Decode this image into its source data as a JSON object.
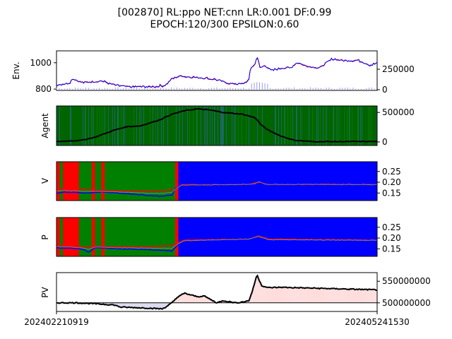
{
  "title_line1": "[002870] RL:ppo NET:cnn LR:0.001 DF:0.99",
  "title_line2": "EPOCH:120/300 EPSILON:0.60",
  "x_start_label": "202402210919",
  "x_end_label": "202405241530",
  "colors": {
    "red": "#ff0000",
    "blue": "#0000ff",
    "green": "#008000",
    "dark_green": "#006400",
    "black": "#000000",
    "gray": "#808080",
    "pink_fill": "#ffdddd",
    "lavender_fill": "#dcdcf0"
  },
  "chart_data": [
    {
      "type": "line",
      "panel": "env",
      "ylabel": "Env.",
      "yticks_left": [
        800,
        1000
      ],
      "yticks_right": [
        "0",
        "250000"
      ],
      "ylim": [
        790,
        1090
      ],
      "price_keypoints": [
        [
          0,
          832
        ],
        [
          0.04,
          845
        ],
        [
          0.05,
          880
        ],
        [
          0.08,
          850
        ],
        [
          0.14,
          862
        ],
        [
          0.18,
          830
        ],
        [
          0.22,
          818
        ],
        [
          0.3,
          818
        ],
        [
          0.34,
          830
        ],
        [
          0.36,
          880
        ],
        [
          0.39,
          900
        ],
        [
          0.42,
          890
        ],
        [
          0.46,
          885
        ],
        [
          0.5,
          870
        ],
        [
          0.54,
          840
        ],
        [
          0.58,
          840
        ],
        [
          0.6,
          870
        ],
        [
          0.605,
          960
        ],
        [
          0.62,
          990
        ],
        [
          0.625,
          1060
        ],
        [
          0.635,
          960
        ],
        [
          0.65,
          980
        ],
        [
          0.67,
          940
        ],
        [
          0.7,
          960
        ],
        [
          0.73,
          960
        ],
        [
          0.75,
          1000
        ],
        [
          0.78,
          975
        ],
        [
          0.82,
          960
        ],
        [
          0.86,
          1030
        ],
        [
          0.9,
          1015
        ],
        [
          0.94,
          1020
        ],
        [
          0.98,
          980
        ],
        [
          1.0,
          1000
        ]
      ]
    },
    {
      "type": "line",
      "panel": "agent",
      "ylabel": "Agent",
      "yticks_right": [
        "0",
        "500000"
      ],
      "ylim": [
        -60000,
        610000
      ],
      "holdings_keypoints": [
        [
          0,
          5000
        ],
        [
          0.08,
          30000
        ],
        [
          0.12,
          80000
        ],
        [
          0.18,
          200000
        ],
        [
          0.22,
          260000
        ],
        [
          0.26,
          270000
        ],
        [
          0.32,
          370000
        ],
        [
          0.36,
          470000
        ],
        [
          0.4,
          530000
        ],
        [
          0.44,
          560000
        ],
        [
          0.48,
          540000
        ],
        [
          0.52,
          500000
        ],
        [
          0.58,
          470000
        ],
        [
          0.62,
          410000
        ],
        [
          0.64,
          280000
        ],
        [
          0.66,
          200000
        ],
        [
          0.7,
          100000
        ],
        [
          0.74,
          30000
        ],
        [
          0.8,
          5000
        ],
        [
          1.0,
          8000
        ]
      ]
    },
    {
      "type": "area",
      "panel": "value",
      "ylabel": "V",
      "yticks": [
        "0.15",
        "0.20",
        "0.25"
      ],
      "ylim": [
        0.115,
        0.295
      ],
      "bands": [
        [
          0,
          0.01,
          "red"
        ],
        [
          0.01,
          0.02,
          "green"
        ],
        [
          0.02,
          0.07,
          "red"
        ],
        [
          0.07,
          0.11,
          "green"
        ],
        [
          0.11,
          0.12,
          "red"
        ],
        [
          0.12,
          0.14,
          "green"
        ],
        [
          0.14,
          0.15,
          "red"
        ],
        [
          0.15,
          0.37,
          "green"
        ],
        [
          0.37,
          0.38,
          "red"
        ],
        [
          0.38,
          1.0,
          "blue"
        ]
      ],
      "line1_keypoints": [
        [
          0,
          0.15
        ],
        [
          0.02,
          0.155
        ],
        [
          0.1,
          0.15
        ],
        [
          0.14,
          0.155
        ],
        [
          0.24,
          0.145
        ],
        [
          0.32,
          0.135
        ],
        [
          0.36,
          0.14
        ],
        [
          0.37,
          0.17
        ],
        [
          0.39,
          0.185
        ],
        [
          0.6,
          0.19
        ],
        [
          0.62,
          0.19
        ],
        [
          0.63,
          0.205
        ],
        [
          0.65,
          0.19
        ],
        [
          0.8,
          0.19
        ],
        [
          1.0,
          0.188
        ]
      ],
      "line2_keypoints": [
        [
          0,
          0.17
        ],
        [
          0.1,
          0.165
        ],
        [
          0.14,
          0.16
        ],
        [
          0.2,
          0.16
        ],
        [
          0.3,
          0.16
        ],
        [
          0.37,
          0.165
        ],
        [
          0.39,
          0.188
        ],
        [
          0.6,
          0.19
        ],
        [
          0.63,
          0.2
        ],
        [
          0.66,
          0.19
        ],
        [
          1.0,
          0.19
        ]
      ]
    },
    {
      "type": "area",
      "panel": "policy",
      "ylabel": "P",
      "yticks": [
        "0.15",
        "0.20",
        "0.25"
      ],
      "ylim": [
        0.115,
        0.295
      ],
      "bands": [
        [
          0,
          0.01,
          "red"
        ],
        [
          0.01,
          0.02,
          "green"
        ],
        [
          0.02,
          0.07,
          "red"
        ],
        [
          0.07,
          0.11,
          "green"
        ],
        [
          0.11,
          0.12,
          "red"
        ],
        [
          0.12,
          0.14,
          "green"
        ],
        [
          0.14,
          0.15,
          "red"
        ],
        [
          0.15,
          0.37,
          "green"
        ],
        [
          0.37,
          0.38,
          "red"
        ],
        [
          0.38,
          1.0,
          "blue"
        ]
      ],
      "line1_keypoints": [
        [
          0,
          0.155
        ],
        [
          0.08,
          0.15
        ],
        [
          0.1,
          0.135
        ],
        [
          0.12,
          0.155
        ],
        [
          0.2,
          0.15
        ],
        [
          0.3,
          0.145
        ],
        [
          0.36,
          0.14
        ],
        [
          0.38,
          0.17
        ],
        [
          0.4,
          0.185
        ],
        [
          0.6,
          0.195
        ],
        [
          0.63,
          0.205
        ],
        [
          0.66,
          0.19
        ],
        [
          1.0,
          0.188
        ]
      ],
      "line2_keypoints": [
        [
          0,
          0.165
        ],
        [
          0.08,
          0.16
        ],
        [
          0.14,
          0.16
        ],
        [
          0.3,
          0.16
        ],
        [
          0.36,
          0.165
        ],
        [
          0.4,
          0.19
        ],
        [
          0.6,
          0.195
        ],
        [
          0.63,
          0.21
        ],
        [
          0.66,
          0.195
        ],
        [
          1.0,
          0.19
        ]
      ]
    },
    {
      "type": "line",
      "panel": "pv",
      "ylabel": "PV",
      "yticks_right": [
        "500000000",
        "550000000"
      ],
      "ylim": [
        480000000,
        570000000
      ],
      "baseline": 500000000,
      "pv_keypoints": [
        [
          0,
          500000000
        ],
        [
          0.06,
          500000000
        ],
        [
          0.12,
          498000000
        ],
        [
          0.18,
          495000000
        ],
        [
          0.2,
          490000000
        ],
        [
          0.28,
          488000000
        ],
        [
          0.33,
          486000000
        ],
        [
          0.34,
          490000000
        ],
        [
          0.36,
          500000000
        ],
        [
          0.38,
          515000000
        ],
        [
          0.4,
          522000000
        ],
        [
          0.42,
          518000000
        ],
        [
          0.44,
          514000000
        ],
        [
          0.46,
          516000000
        ],
        [
          0.48,
          508000000
        ],
        [
          0.5,
          500000000
        ],
        [
          0.52,
          505000000
        ],
        [
          0.56,
          500000000
        ],
        [
          0.58,
          502000000
        ],
        [
          0.6,
          505000000
        ],
        [
          0.61,
          525000000
        ],
        [
          0.625,
          565000000
        ],
        [
          0.64,
          540000000
        ],
        [
          0.66,
          535000000
        ],
        [
          0.7,
          536000000
        ],
        [
          0.8,
          534000000
        ],
        [
          0.9,
          532000000
        ],
        [
          1.0,
          530000000
        ]
      ]
    }
  ]
}
